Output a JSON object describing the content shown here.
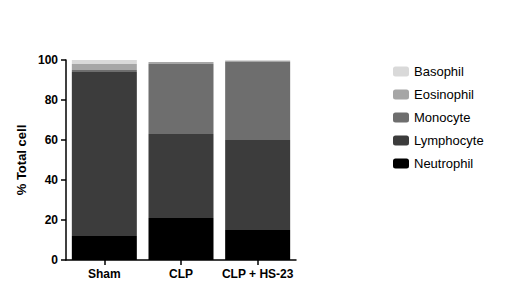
{
  "chart_data": {
    "type": "bar",
    "stacked": true,
    "categories": [
      "Sham",
      "CLP",
      "CLP + HS-23"
    ],
    "y_label": "% Total cell",
    "ylim": [
      0,
      100
    ],
    "yticks": [
      0,
      20,
      40,
      60,
      80,
      100
    ],
    "legend": "right",
    "series": [
      {
        "name": "Neutrophil",
        "color": "#000000",
        "values": [
          12,
          21,
          15
        ]
      },
      {
        "name": "Lymphocyte",
        "color": "#3c3c3c",
        "values": [
          82,
          42,
          45
        ]
      },
      {
        "name": "Monocyte",
        "color": "#6e6e6e",
        "values": [
          1,
          35,
          39
        ]
      },
      {
        "name": "Eosinophil",
        "color": "#a6a6a6",
        "values": [
          3,
          1,
          0.5
        ]
      },
      {
        "name": "Basophil",
        "color": "#d9d9d9",
        "values": [
          2,
          0,
          0.5
        ]
      }
    ]
  }
}
